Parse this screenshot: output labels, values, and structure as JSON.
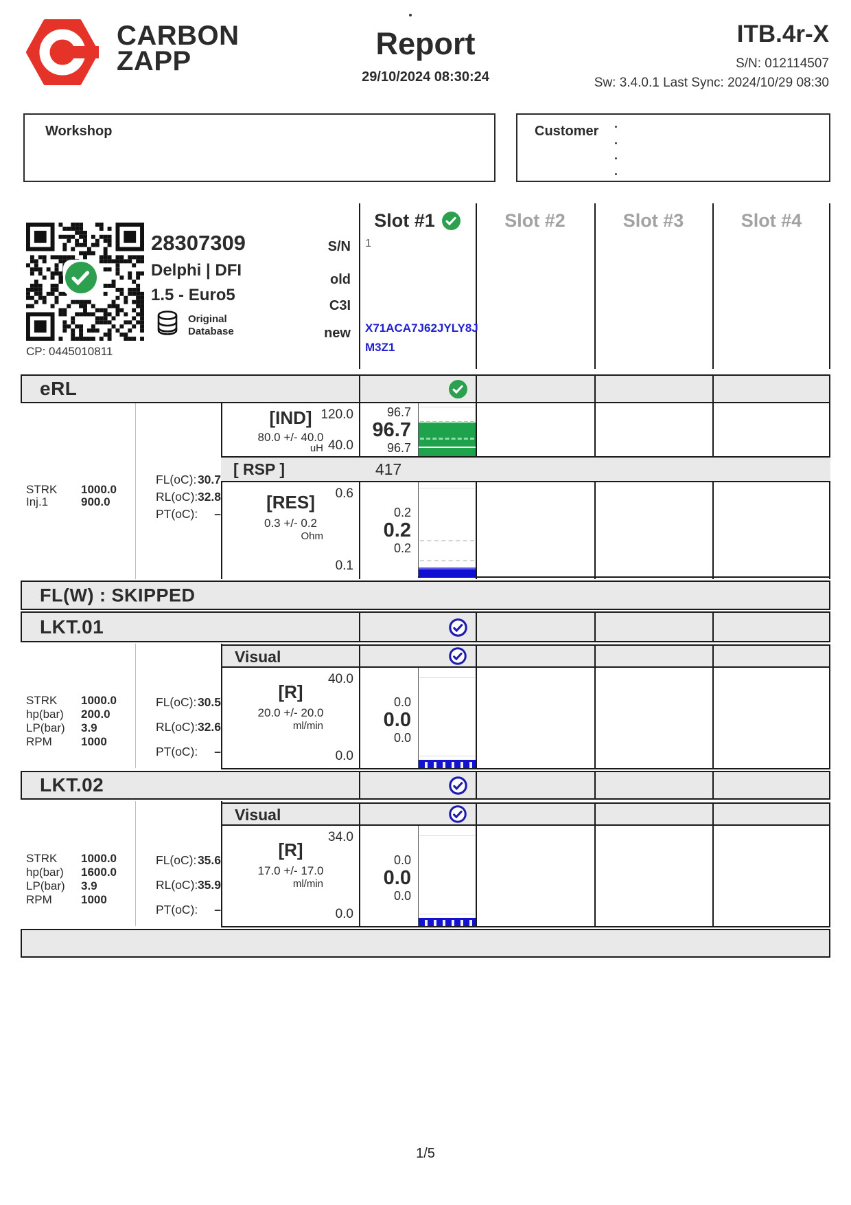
{
  "header": {
    "brand_line1": "CARBON",
    "brand_line2": "ZAPP",
    "title": "Report",
    "datetime": "29/10/2024 08:30:24",
    "device": "ITB.4r-X",
    "serial": "S/N: 012114507",
    "sw": "Sw: 3.4.0.1 Last Sync: 2024/10/29 08:30"
  },
  "info_boxes": {
    "workshop": "Workshop",
    "customer": "Customer"
  },
  "slots": [
    {
      "label": "Slot #1",
      "passed": true
    },
    {
      "label": "Slot #2",
      "passed": false
    },
    {
      "label": "Slot #3",
      "passed": false
    },
    {
      "label": "Slot #4",
      "passed": false
    }
  ],
  "injector": {
    "part_number": "28307309",
    "brand_type": "Delphi | DFI",
    "engine": "1.5 - Euro5",
    "db_line1": "Original",
    "db_line2": "Database",
    "cp": "CP: 0445010811",
    "rows": {
      "sn": "S/N",
      "old": "old",
      "c3i": "C3I",
      "new": "new"
    },
    "slot1": {
      "sn": "1",
      "code_line1": "X71ACA7J62JYLY8J",
      "code_line2": "M3Z1"
    }
  },
  "sections": {
    "erl": {
      "title": "eRL",
      "params": [
        {
          "k": "STRK",
          "v": "1000.0"
        },
        {
          "k": "Inj.1",
          "v": "900.0"
        }
      ],
      "temps": [
        {
          "k": "FL(oC):",
          "v": "30.7"
        },
        {
          "k": "RL(oC):",
          "v": "32.8"
        },
        {
          "k": "PT(oC):",
          "v": "–"
        }
      ],
      "ind": {
        "label": "[IND]",
        "spec": "80.0 +/- 40.0",
        "unit": "uH",
        "max": "120.0",
        "min": "40.0",
        "v_top": "96.7",
        "v_main": "96.7",
        "v_bot": "96.7"
      },
      "rsp": {
        "label": "[ RSP ]",
        "value": "417"
      },
      "res": {
        "label": "[RES]",
        "spec": "0.3 +/- 0.2",
        "unit": "Ohm",
        "max": "0.6",
        "min": "0.1",
        "v_top": "0.2",
        "v_main": "0.2",
        "v_bot": "0.2"
      }
    },
    "flw": {
      "title": "FL(W) : SKIPPED"
    },
    "lkt01": {
      "title": "LKT.01",
      "visual_label": "Visual",
      "params": [
        {
          "k": "STRK",
          "v": "1000.0"
        },
        {
          "k": "hp(bar)",
          "v": "200.0"
        },
        {
          "k": "LP(bar)",
          "v": "3.9"
        },
        {
          "k": "RPM",
          "v": "1000"
        }
      ],
      "temps": [
        {
          "k": "FL(oC):",
          "v": "30.5"
        },
        {
          "k": "RL(oC):",
          "v": "32.6"
        },
        {
          "k": "PT(oC):",
          "v": "–"
        }
      ],
      "r": {
        "label": "[R]",
        "spec": "20.0 +/- 20.0",
        "unit": "ml/min",
        "max": "40.0",
        "min": "0.0",
        "v_top": "0.0",
        "v_main": "0.0",
        "v_bot": "0.0"
      }
    },
    "lkt02": {
      "title": "LKT.02",
      "visual_label": "Visual",
      "params": [
        {
          "k": "STRK",
          "v": "1000.0"
        },
        {
          "k": "hp(bar)",
          "v": "1600.0"
        },
        {
          "k": "LP(bar)",
          "v": "3.9"
        },
        {
          "k": "RPM",
          "v": "1000"
        }
      ],
      "temps": [
        {
          "k": "FL(oC):",
          "v": "35.6"
        },
        {
          "k": "RL(oC):",
          "v": "35.9"
        },
        {
          "k": "PT(oC):",
          "v": "–"
        }
      ],
      "r": {
        "label": "[R]",
        "spec": "17.0 +/- 17.0",
        "unit": "ml/min",
        "max": "34.0",
        "min": "0.0",
        "v_top": "0.0",
        "v_main": "0.0",
        "v_bot": "0.0"
      }
    }
  },
  "footer": {
    "page": "1/5"
  },
  "colors": {
    "brand_red": "#e6332a",
    "pass_green": "#2ca04f",
    "check_blue": "#1d1bb0",
    "bar_green": "#1fa24c",
    "bar_blue": "#0f0fd2",
    "code_blue": "#2020d0",
    "band_gray": "#e9e9e9"
  }
}
